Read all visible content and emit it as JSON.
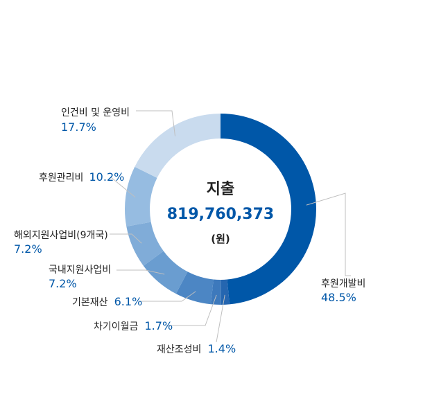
{
  "chart_data": {
    "type": "pie",
    "variant": "donut",
    "title": "지출",
    "total": "819,760,373",
    "unit": "(원)",
    "slices": [
      {
        "label": "후원개발비",
        "value": 48.5,
        "value_label": "48.5%",
        "color": "#0057a8"
      },
      {
        "label": "재산조성비",
        "value": 1.4,
        "value_label": "1.4%",
        "color": "#2566b0"
      },
      {
        "label": "차기이월금",
        "value": 1.7,
        "value_label": "1.7%",
        "color": "#3d79bc"
      },
      {
        "label": "기본재산",
        "value": 6.1,
        "value_label": "6.1%",
        "color": "#4c86c4"
      },
      {
        "label": "국내지원사업비",
        "value": 7.2,
        "value_label": "7.2%",
        "color": "#6a9dd0"
      },
      {
        "label": "해외지원사업비(9개국)",
        "value": 7.2,
        "value_label": "7.2%",
        "color": "#80acd8"
      },
      {
        "label": "후원관리비",
        "value": 10.2,
        "value_label": "10.2%",
        "color": "#96bce1"
      },
      {
        "label": "인건비 및 운영비",
        "value": 17.7,
        "value_label": "17.7%",
        "color": "#c9dbee"
      }
    ]
  }
}
